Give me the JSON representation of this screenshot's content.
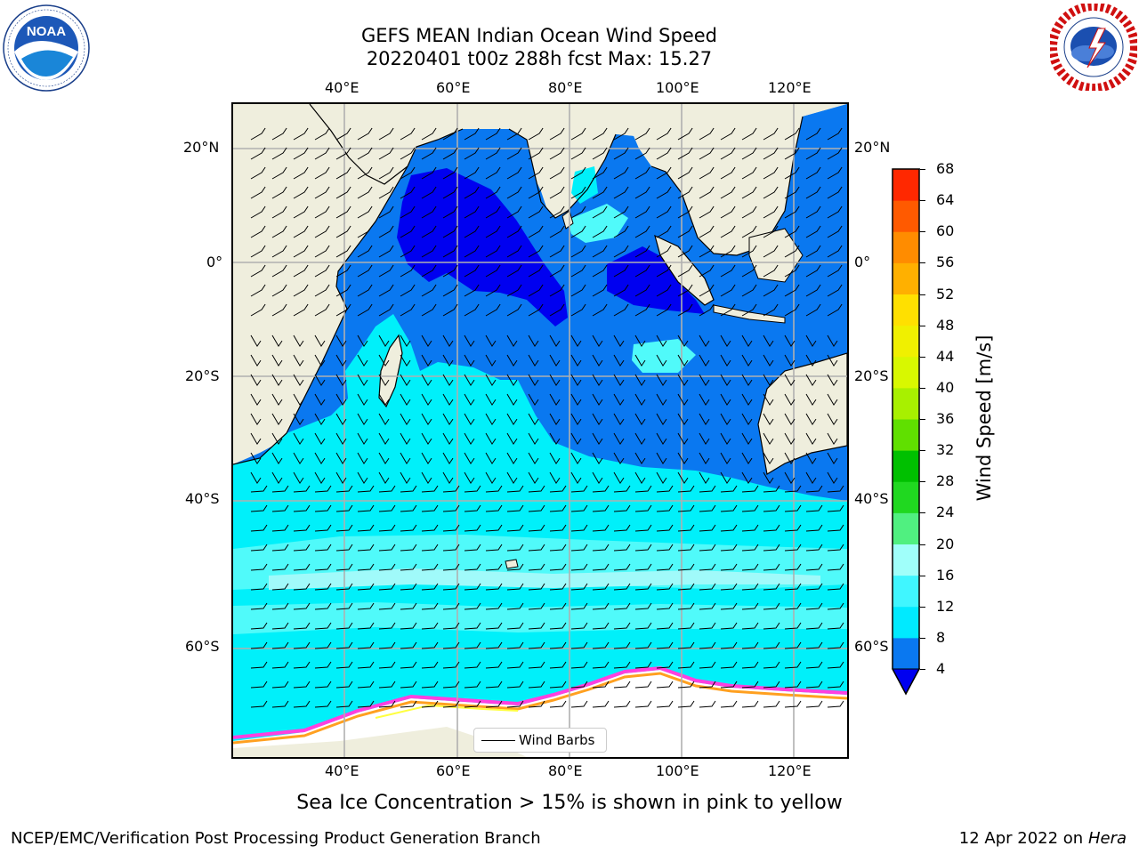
{
  "title": {
    "line1": "GEFS MEAN Indian Ocean Wind Speed",
    "line2": "20220401 t00z 288h fcst   Max: 15.27"
  },
  "logos": {
    "noaa_text": "NOAA",
    "noaa_ring": "NATIONAL OCEANIC AND ATMOSPHERIC ADMINISTRATION · U.S. DEPARTMENT OF COMMERCE",
    "nws_ring": "NATIONAL WEATHER SERVICE"
  },
  "map": {
    "lon_ticks": [
      "40°E",
      "60°E",
      "80°E",
      "100°E",
      "120°E"
    ],
    "lat_ticks": [
      "20°N",
      "0°",
      "20°S",
      "40°S",
      "60°S"
    ],
    "legend_label": "Wind Barbs",
    "colors": {
      "land": "#efeedd",
      "deep_blue": "#0000f0",
      "blue": "#0a78f0",
      "cyan": "#00f0fa",
      "light_cyan": "#50fafa",
      "pale_cyan": "#a0fafa",
      "grid": "#b0b0b0",
      "ice_pink": "#ff40e0",
      "ice_orange": "#ffa020",
      "ice_yellow": "#ffff40"
    }
  },
  "colorbar": {
    "label": "Wind Speed [m/s]",
    "ticks": [
      "4",
      "8",
      "12",
      "16",
      "20",
      "24",
      "28",
      "32",
      "36",
      "40",
      "44",
      "48",
      "52",
      "56",
      "60",
      "64",
      "68"
    ],
    "colors": [
      "#0a78f0",
      "#00eaff",
      "#40f6ff",
      "#a0fffa",
      "#50f080",
      "#20d820",
      "#00c000",
      "#60e000",
      "#a8f000",
      "#d8f800",
      "#f0f000",
      "#ffe000",
      "#ffb000",
      "#ff8c00",
      "#ff5a00",
      "#ff2800"
    ],
    "under_color": "#0000f0"
  },
  "caption": "Sea Ice Concentration > 15% is shown in pink to yellow",
  "footer": {
    "left": "NCEP/EMC/Verification Post Processing Product Generation Branch",
    "date": "12 Apr 2022 on ",
    "machine": "Hera"
  }
}
